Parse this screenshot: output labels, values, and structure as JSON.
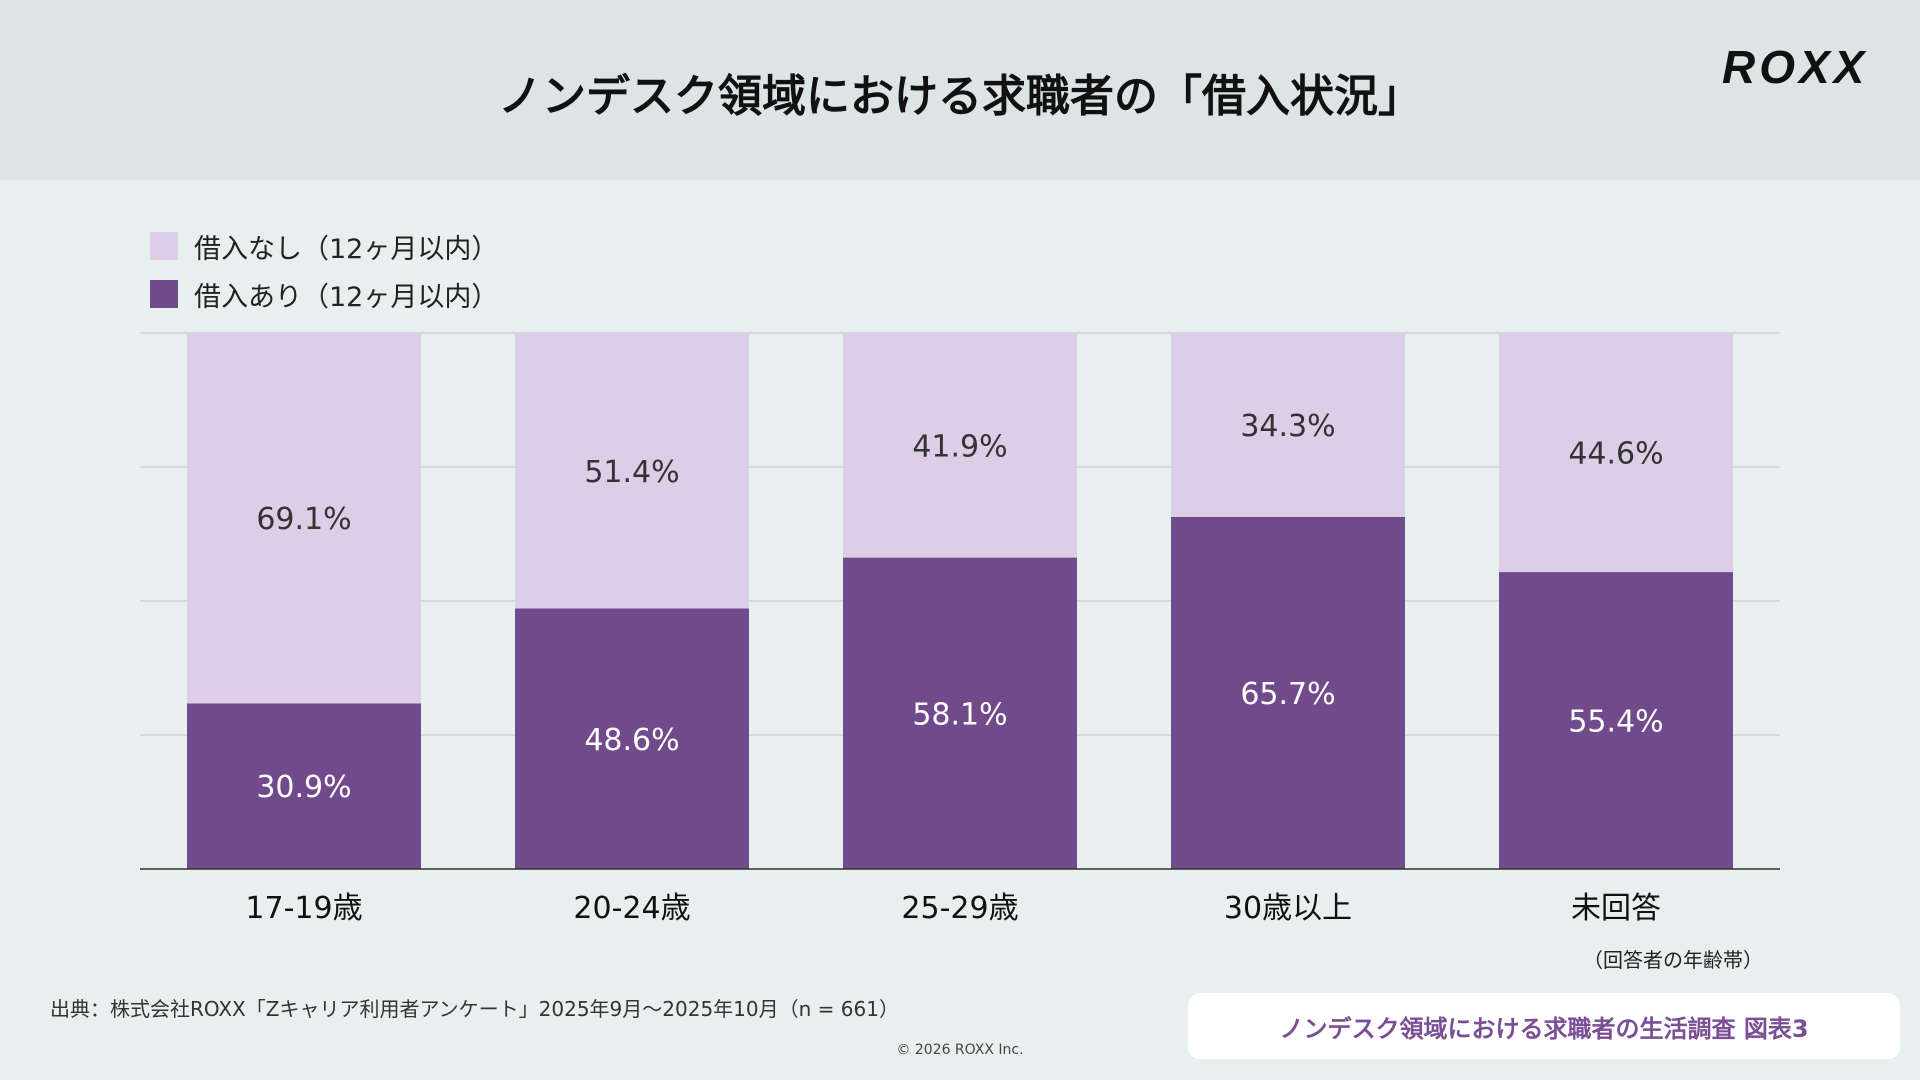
{
  "header": {
    "title": "ノンデスク領域における求職者の「借入状況」",
    "logo": "ROXX"
  },
  "chart_data": {
    "type": "bar",
    "stacked": true,
    "categories": [
      "17-19歳",
      "20-24歳",
      "25-29歳",
      "30歳以上",
      "未回答"
    ],
    "series": [
      {
        "name": "借入あり（12ヶ月以内）",
        "values": [
          30.9,
          48.6,
          58.1,
          65.7,
          55.4
        ],
        "color": "#714a8c",
        "label_color": "#ffffff"
      },
      {
        "name": "借入なし（12ヶ月以内）",
        "values": [
          69.1,
          51.4,
          41.9,
          34.3,
          44.6
        ],
        "color": "#ddcde6",
        "label_color": "#333333"
      }
    ],
    "value_suffix": "%",
    "ylim": [
      0,
      100
    ],
    "grid": true,
    "legend_position": "top-left",
    "legend_order": [
      1,
      0
    ],
    "xlabel": "（回答者の年齢帯）"
  },
  "footer": {
    "source": "出典：株式会社ROXX「Zキャリア利用者アンケート」2025年9月〜2025年10月（n = 661）",
    "copyright": "© 2026 ROXX Inc.",
    "figure_label": "ノンデスク領域における求職者の生活調査 図表3"
  }
}
